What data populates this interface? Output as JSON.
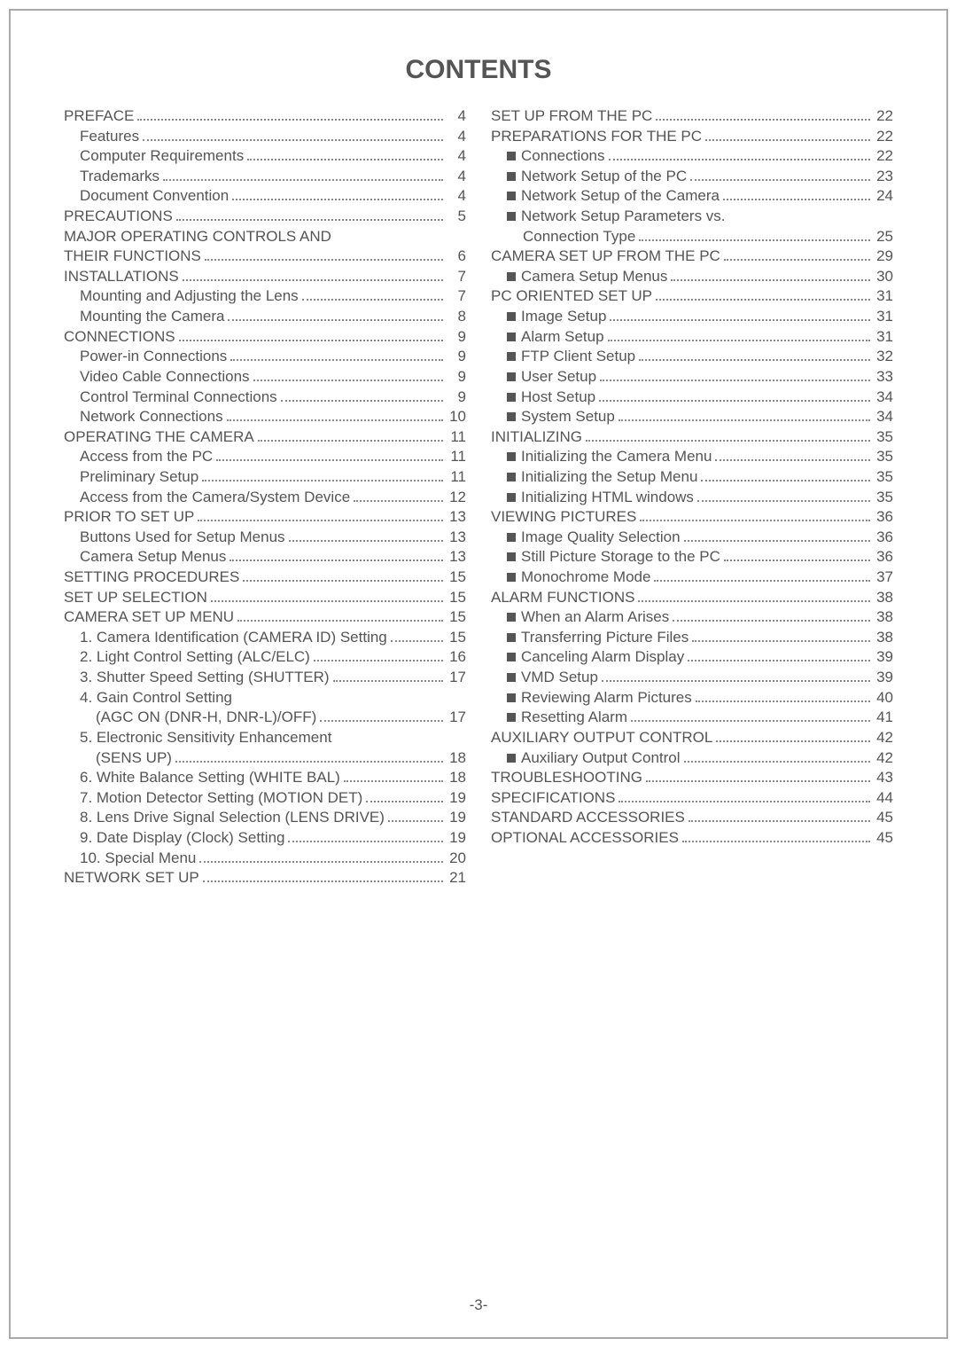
{
  "title": "CONTENTS",
  "footer": "-3-",
  "colors": {
    "text": "#555555",
    "border": "#a9a9a9",
    "dots": "#888888",
    "background": "#ffffff"
  },
  "typography": {
    "title_fontsize": 30,
    "body_fontsize": 17,
    "line_height": 1.33
  },
  "left": [
    {
      "label": "PREFACE",
      "page": "4",
      "indent": 0,
      "bullet": false
    },
    {
      "label": "Features",
      "page": "4",
      "indent": 1,
      "bullet": false
    },
    {
      "label": "Computer Requirements",
      "page": "4",
      "indent": 1,
      "bullet": false
    },
    {
      "label": "Trademarks",
      "page": "4",
      "indent": 1,
      "bullet": false
    },
    {
      "label": "Document Convention",
      "page": "4",
      "indent": 1,
      "bullet": false
    },
    {
      "label": "PRECAUTIONS",
      "page": "5",
      "indent": 0,
      "bullet": false
    },
    {
      "label": "MAJOR OPERATING CONTROLS AND",
      "page": "",
      "indent": 0,
      "bullet": false,
      "nodots": true
    },
    {
      "label": "THEIR FUNCTIONS",
      "page": "6",
      "indent": 0,
      "bullet": false
    },
    {
      "label": "INSTALLATIONS",
      "page": "7",
      "indent": 0,
      "bullet": false
    },
    {
      "label": "Mounting and Adjusting the Lens",
      "page": "7",
      "indent": 1,
      "bullet": false
    },
    {
      "label": "Mounting the Camera",
      "page": "8",
      "indent": 1,
      "bullet": false
    },
    {
      "label": "CONNECTIONS",
      "page": "9",
      "indent": 0,
      "bullet": false
    },
    {
      "label": "Power-in Connections",
      "page": "9",
      "indent": 1,
      "bullet": false
    },
    {
      "label": "Video Cable Connections",
      "page": "9",
      "indent": 1,
      "bullet": false
    },
    {
      "label": "Control Terminal Connections",
      "page": "9",
      "indent": 1,
      "bullet": false
    },
    {
      "label": "Network Connections",
      "page": "10",
      "indent": 1,
      "bullet": false
    },
    {
      "label": "OPERATING THE CAMERA",
      "page": "11",
      "indent": 0,
      "bullet": false
    },
    {
      "label": "Access from the PC",
      "page": "11",
      "indent": 1,
      "bullet": false
    },
    {
      "label": "Preliminary Setup",
      "page": "11",
      "indent": 1,
      "bullet": false
    },
    {
      "label": "Access from the Camera/System Device",
      "page": "12",
      "indent": 1,
      "bullet": false
    },
    {
      "label": "PRIOR TO SET UP",
      "page": "13",
      "indent": 0,
      "bullet": false
    },
    {
      "label": "Buttons Used for Setup Menus",
      "page": "13",
      "indent": 1,
      "bullet": false
    },
    {
      "label": "Camera Setup Menus",
      "page": "13",
      "indent": 1,
      "bullet": false
    },
    {
      "label": "SETTING PROCEDURES",
      "page": "15",
      "indent": 0,
      "bullet": false
    },
    {
      "label": "SET UP SELECTION",
      "page": "15",
      "indent": 0,
      "bullet": false
    },
    {
      "label": "CAMERA SET UP MENU",
      "page": "15",
      "indent": 0,
      "bullet": false
    },
    {
      "label": "1. Camera Identification (CAMERA ID) Setting",
      "page": "15",
      "indent": 1,
      "bullet": false
    },
    {
      "label": "2. Light Control Setting (ALC/ELC)",
      "page": "16",
      "indent": 1,
      "bullet": false
    },
    {
      "label": "3. Shutter Speed Setting (SHUTTER)",
      "page": "17",
      "indent": 1,
      "bullet": false
    },
    {
      "label": "4. Gain Control Setting",
      "page": "",
      "indent": 1,
      "bullet": false,
      "nodots": true
    },
    {
      "label": "(AGC ON (DNR-H, DNR-L)/OFF)",
      "page": "17",
      "indent": 2,
      "bullet": false
    },
    {
      "label": "5. Electronic Sensitivity Enhancement",
      "page": "",
      "indent": 1,
      "bullet": false,
      "nodots": true
    },
    {
      "label": "(SENS UP)",
      "page": "18",
      "indent": 2,
      "bullet": false
    },
    {
      "label": "6. White Balance Setting (WHITE BAL)",
      "page": "18",
      "indent": 1,
      "bullet": false
    },
    {
      "label": "7. Motion Detector Setting (MOTION DET)",
      "page": "19",
      "indent": 1,
      "bullet": false
    },
    {
      "label": "8. Lens Drive Signal Selection (LENS DRIVE)",
      "page": "19",
      "indent": 1,
      "bullet": false
    },
    {
      "label": "9. Date Display (Clock) Setting",
      "page": "19",
      "indent": 1,
      "bullet": false
    },
    {
      "label": "10. Special Menu",
      "page": "20",
      "indent": 1,
      "bullet": false
    },
    {
      "label": "NETWORK SET UP",
      "page": "21",
      "indent": 0,
      "bullet": false
    }
  ],
  "right": [
    {
      "label": "SET UP FROM THE PC",
      "page": "22",
      "indent": 0,
      "bullet": false
    },
    {
      "label": "PREPARATIONS FOR THE PC",
      "page": "22",
      "indent": 0,
      "bullet": false
    },
    {
      "label": "Connections",
      "page": "22",
      "indent": 1,
      "bullet": true
    },
    {
      "label": "Network Setup of the PC",
      "page": "23",
      "indent": 1,
      "bullet": true
    },
    {
      "label": "Network Setup of the Camera",
      "page": "24",
      "indent": 1,
      "bullet": true
    },
    {
      "label": "Network Setup Parameters vs.",
      "page": "",
      "indent": 1,
      "bullet": true,
      "nodots": true
    },
    {
      "label": "Connection Type",
      "page": "25",
      "indent": 2,
      "bullet": false
    },
    {
      "label": "CAMERA SET UP FROM THE PC",
      "page": "29",
      "indent": 0,
      "bullet": false
    },
    {
      "label": "Camera Setup Menus",
      "page": "30",
      "indent": 1,
      "bullet": true
    },
    {
      "label": "PC ORIENTED SET UP",
      "page": "31",
      "indent": 0,
      "bullet": false
    },
    {
      "label": "Image Setup",
      "page": "31",
      "indent": 1,
      "bullet": true
    },
    {
      "label": "Alarm Setup",
      "page": "31",
      "indent": 1,
      "bullet": true
    },
    {
      "label": "FTP Client Setup",
      "page": "32",
      "indent": 1,
      "bullet": true
    },
    {
      "label": "User Setup",
      "page": "33",
      "indent": 1,
      "bullet": true
    },
    {
      "label": "Host Setup",
      "page": "34",
      "indent": 1,
      "bullet": true
    },
    {
      "label": "System Setup",
      "page": "34",
      "indent": 1,
      "bullet": true
    },
    {
      "label": "INITIALIZING",
      "page": "35",
      "indent": 0,
      "bullet": false
    },
    {
      "label": "Initializing the Camera Menu",
      "page": "35",
      "indent": 1,
      "bullet": true
    },
    {
      "label": "Initializing the Setup Menu",
      "page": "35",
      "indent": 1,
      "bullet": true
    },
    {
      "label": "Initializing HTML windows",
      "page": "35",
      "indent": 1,
      "bullet": true
    },
    {
      "label": "VIEWING PICTURES",
      "page": "36",
      "indent": 0,
      "bullet": false
    },
    {
      "label": "Image Quality Selection",
      "page": "36",
      "indent": 1,
      "bullet": true
    },
    {
      "label": "Still Picture Storage to the PC",
      "page": "36",
      "indent": 1,
      "bullet": true
    },
    {
      "label": "Monochrome Mode",
      "page": "37",
      "indent": 1,
      "bullet": true
    },
    {
      "label": "ALARM FUNCTIONS",
      "page": "38",
      "indent": 0,
      "bullet": false
    },
    {
      "label": "When an Alarm Arises",
      "page": "38",
      "indent": 1,
      "bullet": true
    },
    {
      "label": "Transferring Picture Files",
      "page": "38",
      "indent": 1,
      "bullet": true
    },
    {
      "label": "Canceling Alarm Display",
      "page": "39",
      "indent": 1,
      "bullet": true
    },
    {
      "label": "VMD Setup",
      "page": "39",
      "indent": 1,
      "bullet": true
    },
    {
      "label": "Reviewing Alarm Pictures",
      "page": "40",
      "indent": 1,
      "bullet": true
    },
    {
      "label": "Resetting Alarm",
      "page": "41",
      "indent": 1,
      "bullet": true
    },
    {
      "label": "AUXILIARY OUTPUT CONTROL",
      "page": "42",
      "indent": 0,
      "bullet": false
    },
    {
      "label": "Auxiliary Output Control",
      "page": "42",
      "indent": 1,
      "bullet": true
    },
    {
      "label": "TROUBLESHOOTING",
      "page": "43",
      "indent": 0,
      "bullet": false
    },
    {
      "label": "SPECIFICATIONS",
      "page": "44",
      "indent": 0,
      "bullet": false
    },
    {
      "label": "STANDARD ACCESSORIES",
      "page": "45",
      "indent": 0,
      "bullet": false
    },
    {
      "label": "OPTIONAL ACCESSORIES",
      "page": "45",
      "indent": 0,
      "bullet": false
    }
  ]
}
